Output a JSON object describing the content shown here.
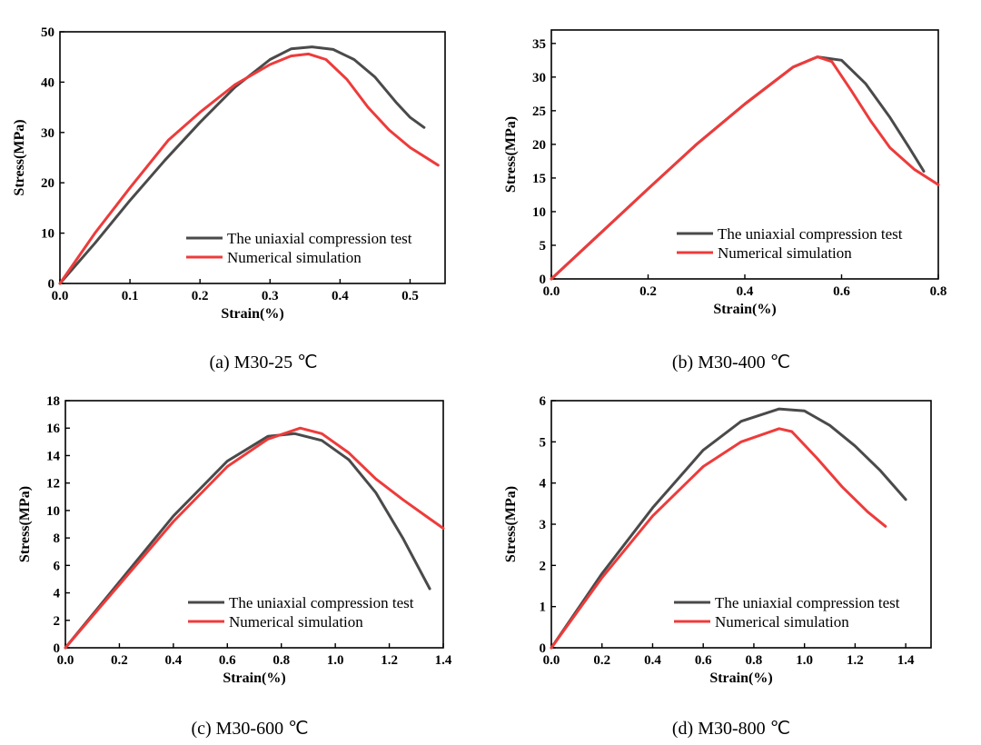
{
  "figure": {
    "caption_temp_unit": "℃"
  },
  "colors": {
    "test": "#4a4a4a",
    "simulation": "#ee3b3b",
    "axis": "#000000"
  },
  "chart_data": [
    {
      "type": "line",
      "caption": "(a) M30-25 ℃",
      "xlabel": "Strain(%)",
      "ylabel": "Stress(MPa)",
      "xlim": [
        0,
        0.55
      ],
      "ylim": [
        0,
        50
      ],
      "xticks": [
        0.0,
        0.1,
        0.2,
        0.3,
        0.4,
        0.5
      ],
      "xtick_labels": [
        "0.0",
        "0.1",
        "0.2",
        "0.3",
        "0.4",
        "0.5"
      ],
      "yticks": [
        0,
        10,
        20,
        30,
        40,
        50
      ],
      "ytick_labels": [
        "0",
        "10",
        "20",
        "30",
        "40",
        "50"
      ],
      "legend": "bottom-right",
      "grid": false,
      "series": [
        {
          "name": "The uniaxial compression test",
          "color": "#4a4a4a",
          "x": [
            0,
            0.05,
            0.1,
            0.15,
            0.2,
            0.25,
            0.3,
            0.33,
            0.36,
            0.39,
            0.42,
            0.45,
            0.48,
            0.5,
            0.52
          ],
          "y": [
            0,
            8,
            16.5,
            24.5,
            32,
            39,
            44.5,
            46.6,
            47,
            46.5,
            44.5,
            41,
            36,
            33,
            31
          ]
        },
        {
          "name": "Numerical simulation",
          "color": "#ee3b3b",
          "x": [
            0,
            0.05,
            0.1,
            0.155,
            0.2,
            0.25,
            0.3,
            0.33,
            0.355,
            0.38,
            0.41,
            0.44,
            0.47,
            0.5,
            0.54
          ],
          "y": [
            0,
            10,
            19,
            28.5,
            34,
            39.5,
            43.5,
            45.2,
            45.6,
            44.5,
            40.5,
            35,
            30.5,
            27,
            23.5
          ]
        }
      ]
    },
    {
      "type": "line",
      "caption": "(b) M30-400 ℃",
      "xlabel": "Strain(%)",
      "ylabel": "Stress(MPa)",
      "xlim": [
        0,
        0.8
      ],
      "ylim": [
        0,
        37
      ],
      "xticks": [
        0.0,
        0.2,
        0.4,
        0.6,
        0.8
      ],
      "xtick_labels": [
        "0.0",
        "0.2",
        "0.4",
        "0.6",
        "0.8"
      ],
      "yticks": [
        0,
        5,
        10,
        15,
        20,
        25,
        30,
        35
      ],
      "ytick_labels": [
        "0",
        "5",
        "10",
        "15",
        "20",
        "25",
        "30",
        "35"
      ],
      "legend": "bottom-right",
      "grid": false,
      "series": [
        {
          "name": "The uniaxial compression test",
          "color": "#4a4a4a",
          "x": [
            0,
            0.1,
            0.2,
            0.3,
            0.4,
            0.5,
            0.55,
            0.6,
            0.65,
            0.7,
            0.74,
            0.77
          ],
          "y": [
            0,
            6.7,
            13.4,
            20,
            26,
            31.5,
            33,
            32.5,
            29,
            24,
            19.5,
            16
          ]
        },
        {
          "name": "Numerical simulation",
          "color": "#ee3b3b",
          "x": [
            0,
            0.1,
            0.2,
            0.3,
            0.4,
            0.5,
            0.55,
            0.58,
            0.62,
            0.66,
            0.7,
            0.75,
            0.8
          ],
          "y": [
            0,
            6.7,
            13.4,
            20,
            26,
            31.5,
            33,
            32.3,
            28,
            23.5,
            19.5,
            16.3,
            14
          ]
        }
      ]
    },
    {
      "type": "line",
      "caption": "(c) M30-600 ℃",
      "xlabel": "Strain(%)",
      "ylabel": "Stress(MPa)",
      "xlim": [
        0,
        1.4
      ],
      "ylim": [
        0,
        18
      ],
      "xticks": [
        0.0,
        0.2,
        0.4,
        0.6,
        0.8,
        1.0,
        1.2,
        1.4
      ],
      "xtick_labels": [
        "0.0",
        "0.2",
        "0.4",
        "0.6",
        "0.8",
        "1.0",
        "1.2",
        "1.4"
      ],
      "yticks": [
        0,
        2,
        4,
        6,
        8,
        10,
        12,
        14,
        16,
        18
      ],
      "ytick_labels": [
        "0",
        "2",
        "4",
        "6",
        "8",
        "10",
        "12",
        "14",
        "16",
        "18"
      ],
      "legend": "bottom-right",
      "grid": false,
      "series": [
        {
          "name": "The uniaxial compression test",
          "color": "#4a4a4a",
          "x": [
            0,
            0.2,
            0.4,
            0.6,
            0.75,
            0.85,
            0.95,
            1.05,
            1.15,
            1.25,
            1.35
          ],
          "y": [
            0,
            4.8,
            9.6,
            13.6,
            15.4,
            15.6,
            15.1,
            13.7,
            11.3,
            8,
            4.3
          ]
        },
        {
          "name": "Numerical simulation",
          "color": "#ee3b3b",
          "x": [
            0,
            0.2,
            0.4,
            0.6,
            0.75,
            0.87,
            0.95,
            1.05,
            1.15,
            1.25,
            1.35,
            1.4
          ],
          "y": [
            0,
            4.6,
            9.2,
            13.2,
            15.2,
            16,
            15.6,
            14.2,
            12.3,
            10.8,
            9.4,
            8.7
          ]
        }
      ]
    },
    {
      "type": "line",
      "caption": "(d) M30-800 ℃",
      "xlabel": "Strain(%)",
      "ylabel": "Stress(MPa)",
      "xlim": [
        0,
        1.5
      ],
      "ylim": [
        0,
        6
      ],
      "xticks": [
        0.0,
        0.2,
        0.4,
        0.6,
        0.8,
        1.0,
        1.2,
        1.4
      ],
      "xtick_labels": [
        "0.0",
        "0.2",
        "0.4",
        "0.6",
        "0.8",
        "1.0",
        "1.2",
        "1.4"
      ],
      "yticks": [
        0,
        1,
        2,
        3,
        4,
        5,
        6
      ],
      "ytick_labels": [
        "0",
        "1",
        "2",
        "3",
        "4",
        "5",
        "6"
      ],
      "legend": "bottom-right",
      "grid": false,
      "series": [
        {
          "name": "The uniaxial compression test",
          "color": "#4a4a4a",
          "x": [
            0,
            0.2,
            0.4,
            0.6,
            0.75,
            0.9,
            1.0,
            1.1,
            1.2,
            1.3,
            1.4
          ],
          "y": [
            0,
            1.8,
            3.4,
            4.8,
            5.5,
            5.8,
            5.75,
            5.4,
            4.9,
            4.3,
            3.6
          ]
        },
        {
          "name": "Numerical simulation",
          "color": "#ee3b3b",
          "x": [
            0,
            0.2,
            0.4,
            0.6,
            0.75,
            0.9,
            0.95,
            1.05,
            1.15,
            1.25,
            1.32
          ],
          "y": [
            0,
            1.7,
            3.2,
            4.4,
            5,
            5.32,
            5.25,
            4.6,
            3.9,
            3.3,
            2.95
          ]
        }
      ]
    }
  ]
}
